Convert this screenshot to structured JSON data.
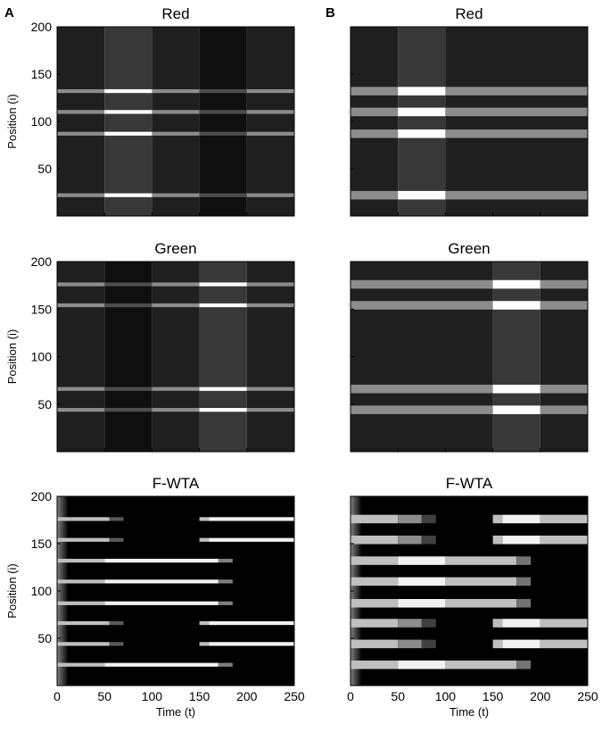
{
  "panel_letters": [
    "A",
    "B"
  ],
  "chart_data": [
    {
      "type": "heatmap",
      "panel": "A",
      "title": "Red",
      "ylabel": "Position (i)",
      "xlabel": "",
      "xlim": [
        0,
        250
      ],
      "ylim": [
        0,
        200
      ],
      "yticks": [
        50,
        100,
        150,
        200
      ],
      "xticks": [],
      "background": {
        "segments": [
          [
            0,
            50,
            0.12
          ],
          [
            50,
            100,
            0.22
          ],
          [
            100,
            150,
            0.12
          ],
          [
            150,
            200,
            0.06
          ],
          [
            200,
            250,
            0.12
          ]
        ]
      },
      "stripes": [
        {
          "y": 132,
          "h": 4,
          "segments": [
            [
              0,
              50,
              0.55
            ],
            [
              50,
              100,
              1.0
            ],
            [
              100,
              150,
              0.55
            ],
            [
              150,
              200,
              0.3
            ],
            [
              200,
              250,
              0.55
            ]
          ]
        },
        {
          "y": 110,
          "h": 4,
          "segments": [
            [
              0,
              50,
              0.55
            ],
            [
              50,
              100,
              1.0
            ],
            [
              100,
              150,
              0.55
            ],
            [
              150,
              200,
              0.3
            ],
            [
              200,
              250,
              0.55
            ]
          ]
        },
        {
          "y": 87,
          "h": 4,
          "segments": [
            [
              0,
              50,
              0.55
            ],
            [
              50,
              100,
              1.0
            ],
            [
              100,
              150,
              0.55
            ],
            [
              150,
              200,
              0.3
            ],
            [
              200,
              250,
              0.55
            ]
          ]
        },
        {
          "y": 22,
          "h": 4,
          "segments": [
            [
              0,
              50,
              0.55
            ],
            [
              50,
              100,
              1.0
            ],
            [
              100,
              150,
              0.55
            ],
            [
              150,
              200,
              0.3
            ],
            [
              200,
              250,
              0.55
            ]
          ]
        }
      ]
    },
    {
      "type": "heatmap",
      "panel": "B",
      "title": "Red",
      "ylabel": "",
      "xlabel": "",
      "xlim": [
        0,
        250
      ],
      "ylim": [
        0,
        200
      ],
      "yticks": [],
      "xticks": [],
      "background": {
        "segments": [
          [
            0,
            50,
            0.12
          ],
          [
            50,
            100,
            0.22
          ],
          [
            100,
            250,
            0.12
          ]
        ]
      },
      "stripes": [
        {
          "y": 132,
          "h": 9,
          "segments": [
            [
              0,
              50,
              0.55
            ],
            [
              50,
              100,
              1.0
            ],
            [
              100,
              250,
              0.55
            ]
          ]
        },
        {
          "y": 110,
          "h": 9,
          "segments": [
            [
              0,
              50,
              0.55
            ],
            [
              50,
              100,
              1.0
            ],
            [
              100,
              250,
              0.55
            ]
          ]
        },
        {
          "y": 87,
          "h": 9,
          "segments": [
            [
              0,
              50,
              0.55
            ],
            [
              50,
              100,
              1.0
            ],
            [
              100,
              250,
              0.55
            ]
          ]
        },
        {
          "y": 22,
          "h": 9,
          "segments": [
            [
              0,
              50,
              0.55
            ],
            [
              50,
              100,
              1.0
            ],
            [
              100,
              250,
              0.55
            ]
          ]
        }
      ]
    },
    {
      "type": "heatmap",
      "panel": "A",
      "title": "Green",
      "ylabel": "Position (i)",
      "xlabel": "",
      "xlim": [
        0,
        250
      ],
      "ylim": [
        0,
        200
      ],
      "yticks": [
        50,
        100,
        150,
        200
      ],
      "xticks": [],
      "background": {
        "segments": [
          [
            0,
            50,
            0.12
          ],
          [
            50,
            100,
            0.06
          ],
          [
            100,
            150,
            0.12
          ],
          [
            150,
            200,
            0.22
          ],
          [
            200,
            250,
            0.12
          ]
        ]
      },
      "stripes": [
        {
          "y": 176,
          "h": 4,
          "segments": [
            [
              0,
              50,
              0.55
            ],
            [
              50,
              100,
              0.3
            ],
            [
              100,
              150,
              0.55
            ],
            [
              150,
              200,
              1.0
            ],
            [
              200,
              250,
              0.55
            ]
          ]
        },
        {
          "y": 154,
          "h": 4,
          "segments": [
            [
              0,
              50,
              0.55
            ],
            [
              50,
              100,
              0.3
            ],
            [
              100,
              150,
              0.55
            ],
            [
              150,
              200,
              1.0
            ],
            [
              200,
              250,
              0.55
            ]
          ]
        },
        {
          "y": 66,
          "h": 4,
          "segments": [
            [
              0,
              50,
              0.55
            ],
            [
              50,
              100,
              0.3
            ],
            [
              100,
              150,
              0.55
            ],
            [
              150,
              200,
              1.0
            ],
            [
              200,
              250,
              0.55
            ]
          ]
        },
        {
          "y": 44,
          "h": 4,
          "segments": [
            [
              0,
              50,
              0.55
            ],
            [
              50,
              100,
              0.3
            ],
            [
              100,
              150,
              0.55
            ],
            [
              150,
              200,
              1.0
            ],
            [
              200,
              250,
              0.55
            ]
          ]
        }
      ]
    },
    {
      "type": "heatmap",
      "panel": "B",
      "title": "Green",
      "ylabel": "",
      "xlabel": "",
      "xlim": [
        0,
        250
      ],
      "ylim": [
        0,
        200
      ],
      "yticks": [],
      "xticks": [],
      "background": {
        "segments": [
          [
            0,
            150,
            0.12
          ],
          [
            150,
            200,
            0.22
          ],
          [
            200,
            250,
            0.12
          ]
        ]
      },
      "stripes": [
        {
          "y": 176,
          "h": 9,
          "segments": [
            [
              0,
              150,
              0.55
            ],
            [
              150,
              200,
              1.0
            ],
            [
              200,
              250,
              0.55
            ]
          ]
        },
        {
          "y": 154,
          "h": 9,
          "segments": [
            [
              0,
              150,
              0.55
            ],
            [
              150,
              200,
              1.0
            ],
            [
              200,
              250,
              0.55
            ]
          ]
        },
        {
          "y": 66,
          "h": 9,
          "segments": [
            [
              0,
              150,
              0.55
            ],
            [
              150,
              200,
              1.0
            ],
            [
              200,
              250,
              0.55
            ]
          ]
        },
        {
          "y": 44,
          "h": 9,
          "segments": [
            [
              0,
              150,
              0.55
            ],
            [
              150,
              200,
              1.0
            ],
            [
              200,
              250,
              0.55
            ]
          ]
        }
      ]
    },
    {
      "type": "heatmap",
      "panel": "A",
      "title": "F-WTA",
      "ylabel": "Position (i)",
      "xlabel": "Time (t)",
      "xlim": [
        0,
        250
      ],
      "ylim": [
        0,
        200
      ],
      "yticks": [
        50,
        100,
        150,
        200
      ],
      "xticks": [
        0,
        50,
        100,
        150,
        200,
        250
      ],
      "background": {
        "segments": [
          [
            0,
            250,
            0.0
          ]
        ]
      },
      "initial_fade": {
        "t0": 0,
        "t1": 12,
        "level": 0.5
      },
      "stripes": [
        {
          "y": 176,
          "h": 4,
          "segments": [
            [
              0,
              55,
              0.75
            ],
            [
              55,
              70,
              0.35
            ],
            [
              150,
              160,
              0.75
            ],
            [
              160,
              250,
              0.95
            ]
          ]
        },
        {
          "y": 154,
          "h": 4,
          "segments": [
            [
              0,
              55,
              0.75
            ],
            [
              55,
              70,
              0.35
            ],
            [
              150,
              160,
              0.75
            ],
            [
              160,
              250,
              0.95
            ]
          ]
        },
        {
          "y": 132,
          "h": 4,
          "segments": [
            [
              0,
              50,
              0.75
            ],
            [
              50,
              170,
              0.95
            ],
            [
              170,
              185,
              0.5
            ]
          ]
        },
        {
          "y": 110,
          "h": 4,
          "segments": [
            [
              0,
              50,
              0.75
            ],
            [
              50,
              170,
              0.95
            ],
            [
              170,
              185,
              0.5
            ]
          ]
        },
        {
          "y": 87,
          "h": 4,
          "segments": [
            [
              0,
              50,
              0.75
            ],
            [
              50,
              170,
              0.95
            ],
            [
              170,
              185,
              0.5
            ]
          ]
        },
        {
          "y": 66,
          "h": 4,
          "segments": [
            [
              0,
              55,
              0.75
            ],
            [
              55,
              70,
              0.35
            ],
            [
              150,
              160,
              0.75
            ],
            [
              160,
              250,
              0.95
            ]
          ]
        },
        {
          "y": 44,
          "h": 4,
          "segments": [
            [
              0,
              55,
              0.75
            ],
            [
              55,
              70,
              0.35
            ],
            [
              150,
              160,
              0.75
            ],
            [
              160,
              250,
              0.95
            ]
          ]
        },
        {
          "y": 22,
          "h": 4,
          "segments": [
            [
              0,
              50,
              0.75
            ],
            [
              50,
              170,
              0.95
            ],
            [
              170,
              185,
              0.5
            ]
          ]
        }
      ]
    },
    {
      "type": "heatmap",
      "panel": "B",
      "title": "F-WTA",
      "ylabel": "",
      "xlabel": "Time (t)",
      "xlim": [
        0,
        250
      ],
      "ylim": [
        0,
        200
      ],
      "yticks": [],
      "xticks": [
        0,
        50,
        100,
        150,
        200,
        250
      ],
      "background": {
        "segments": [
          [
            0,
            250,
            0.0
          ]
        ]
      },
      "initial_fade": {
        "t0": 0,
        "t1": 12,
        "level": 0.5
      },
      "stripes": [
        {
          "y": 176,
          "h": 9,
          "segments": [
            [
              0,
              50,
              0.75
            ],
            [
              50,
              75,
              0.55
            ],
            [
              75,
              90,
              0.25
            ],
            [
              150,
              160,
              0.75
            ],
            [
              160,
              200,
              0.95
            ],
            [
              200,
              250,
              0.75
            ]
          ]
        },
        {
          "y": 154,
          "h": 9,
          "segments": [
            [
              0,
              50,
              0.75
            ],
            [
              50,
              75,
              0.55
            ],
            [
              75,
              90,
              0.25
            ],
            [
              150,
              160,
              0.75
            ],
            [
              160,
              200,
              0.95
            ],
            [
              200,
              250,
              0.75
            ]
          ]
        },
        {
          "y": 132,
          "h": 9,
          "segments": [
            [
              0,
              50,
              0.75
            ],
            [
              50,
              100,
              0.95
            ],
            [
              100,
              175,
              0.75
            ],
            [
              175,
              190,
              0.45
            ]
          ]
        },
        {
          "y": 110,
          "h": 9,
          "segments": [
            [
              0,
              50,
              0.75
            ],
            [
              50,
              100,
              0.95
            ],
            [
              100,
              175,
              0.75
            ],
            [
              175,
              190,
              0.45
            ]
          ]
        },
        {
          "y": 87,
          "h": 9,
          "segments": [
            [
              0,
              50,
              0.75
            ],
            [
              50,
              100,
              0.95
            ],
            [
              100,
              175,
              0.75
            ],
            [
              175,
              190,
              0.45
            ]
          ]
        },
        {
          "y": 66,
          "h": 9,
          "segments": [
            [
              0,
              50,
              0.75
            ],
            [
              50,
              75,
              0.55
            ],
            [
              75,
              90,
              0.25
            ],
            [
              150,
              160,
              0.75
            ],
            [
              160,
              200,
              0.95
            ],
            [
              200,
              250,
              0.75
            ]
          ]
        },
        {
          "y": 44,
          "h": 9,
          "segments": [
            [
              0,
              50,
              0.75
            ],
            [
              50,
              75,
              0.55
            ],
            [
              75,
              90,
              0.25
            ],
            [
              150,
              160,
              0.75
            ],
            [
              160,
              200,
              0.95
            ],
            [
              200,
              250,
              0.75
            ]
          ]
        },
        {
          "y": 22,
          "h": 9,
          "segments": [
            [
              0,
              50,
              0.75
            ],
            [
              50,
              100,
              0.95
            ],
            [
              100,
              175,
              0.75
            ],
            [
              175,
              190,
              0.45
            ]
          ]
        }
      ]
    }
  ]
}
